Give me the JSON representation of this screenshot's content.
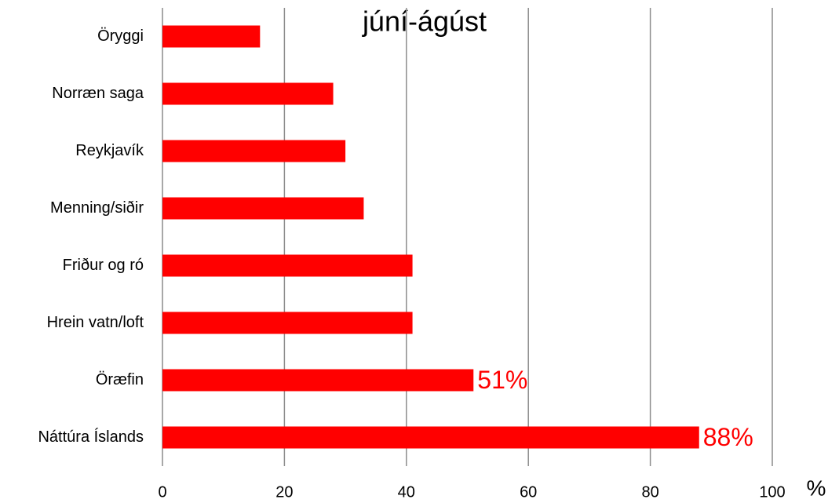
{
  "chart_data": {
    "type": "bar",
    "orientation": "horizontal",
    "title": "júní-ágúst",
    "categories": [
      "Öryggi",
      "Norræn saga",
      "Reykjavík",
      "Menning/siðir",
      "Friður og ró",
      "Hrein vatn/loft",
      "Öræfin",
      "Náttúra Íslands"
    ],
    "values": [
      16,
      28,
      30,
      33,
      41,
      41,
      51,
      88
    ],
    "value_labels": [
      null,
      null,
      null,
      null,
      null,
      null,
      "51%",
      "88%"
    ],
    "color": "#ff0000",
    "x_label": "%",
    "xlim": [
      0,
      100
    ],
    "xticks": [
      0,
      20,
      40,
      60,
      80,
      100
    ],
    "grid": true
  }
}
